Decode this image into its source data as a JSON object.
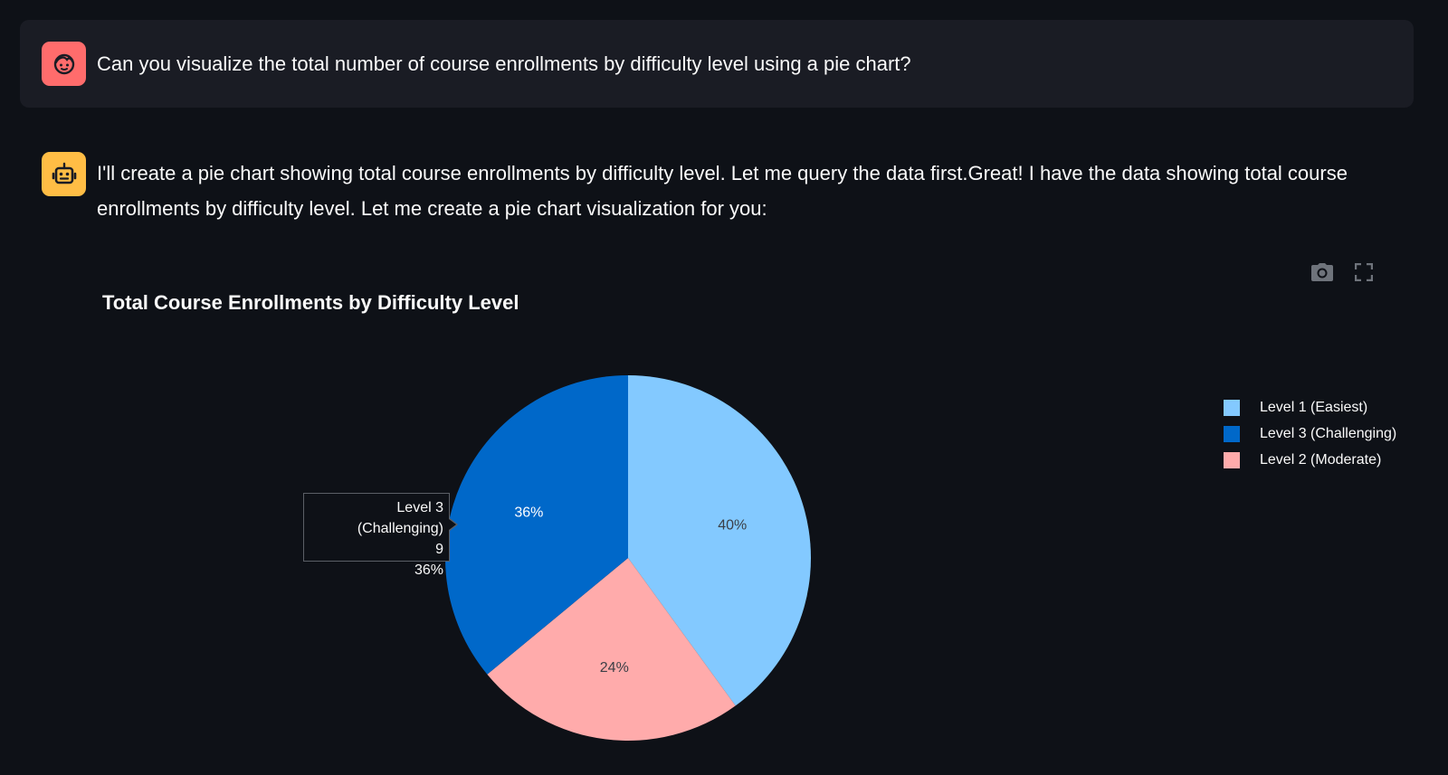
{
  "conversation": {
    "user_message": "Can you visualize the total number of course enrollments by difficulty level using a pie chart?",
    "assistant_message": "I'll create a pie chart showing total course enrollments by difficulty level. Let me query the data first.Great! I have the data showing total course enrollments by difficulty level. Let me create a pie chart visualization for you:",
    "user_avatar_icon": "face-icon",
    "assistant_avatar_icon": "robot-icon",
    "user_avatar_color": "#ff6c6c",
    "assistant_avatar_color": "#ffbd45"
  },
  "toolbar": {
    "icons": [
      "camera-icon",
      "fullscreen-icon"
    ]
  },
  "chart_data": {
    "type": "pie",
    "title": "Total Course Enrollments by Difficulty Level",
    "slices": [
      {
        "label": "Level 1 (Easiest)",
        "percent": 40,
        "text": "40%",
        "color": "#83c9ff",
        "text_color": "#3b3f46"
      },
      {
        "label": "Level 2 (Moderate)",
        "percent": 24,
        "text": "24%",
        "color": "#ffabab",
        "text_color": "#3b3f46"
      },
      {
        "label": "Level 3 (Challenging)",
        "percent": 36,
        "text": "36%",
        "color": "#0068c9",
        "text_color": "#ffffff"
      }
    ],
    "legend": {
      "placement": "top-right",
      "items": [
        {
          "label": "Level 1 (Easiest)",
          "color": "#83c9ff"
        },
        {
          "label": "Level 3 (Challenging)",
          "color": "#0068c9"
        },
        {
          "label": "Level 2 (Moderate)",
          "color": "#ffabab"
        }
      ]
    },
    "tooltip": {
      "label": "Level 3 (Challenging)",
      "value": "9",
      "percent": "36%"
    }
  }
}
